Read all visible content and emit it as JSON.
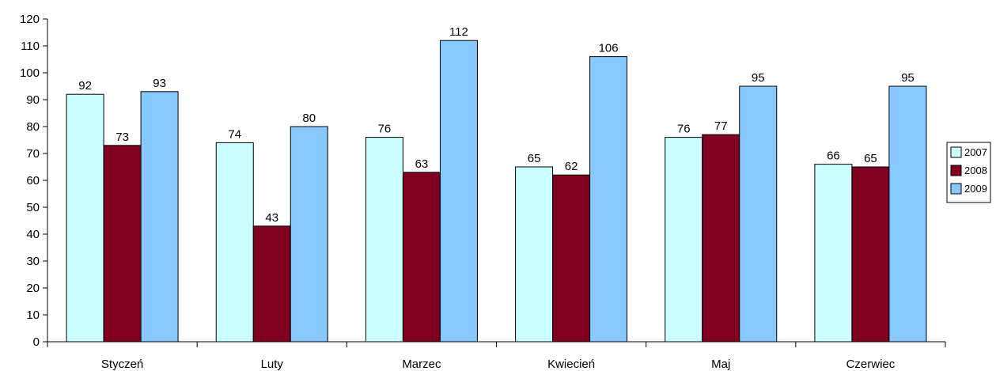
{
  "chart_data": {
    "type": "bar",
    "title": "",
    "xlabel": "",
    "ylabel": "",
    "categories": [
      "Styczeń",
      "Luty",
      "Marzec",
      "Kwiecień",
      "Maj",
      "Czerwiec"
    ],
    "series": [
      {
        "name": "2007",
        "values": [
          92,
          74,
          76,
          65,
          76,
          66
        ],
        "color": "#ccffff"
      },
      {
        "name": "2008",
        "values": [
          73,
          43,
          63,
          62,
          77,
          65
        ],
        "color": "#800020"
      },
      {
        "name": "2009",
        "values": [
          93,
          80,
          112,
          106,
          95,
          95
        ],
        "color": "#87c8ff"
      }
    ],
    "ylim": [
      0,
      120
    ],
    "ytick_step": 10,
    "ytick_labels": [
      "0",
      "10",
      "20",
      "30",
      "40",
      "50",
      "60",
      "70",
      "80",
      "90",
      "100",
      "110",
      "120"
    ],
    "data_labels": true,
    "grid": false,
    "legend_position": "right"
  }
}
